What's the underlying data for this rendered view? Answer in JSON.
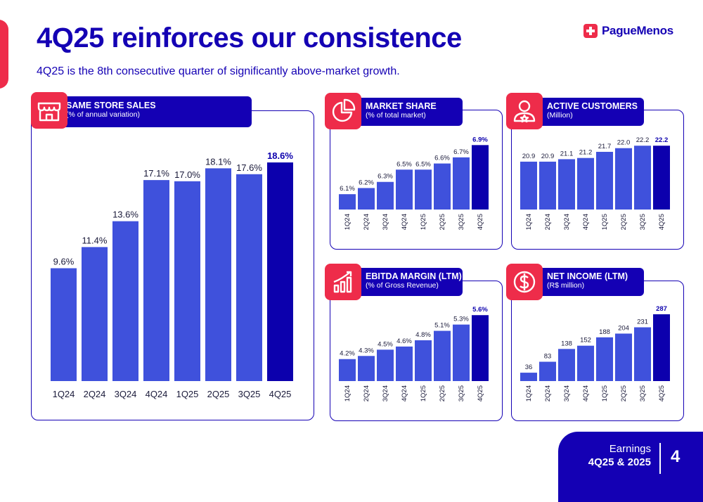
{
  "header": {
    "title": "4Q25 reinforces our consistence",
    "subtitle": "4Q25 is the 8th consecutive quarter of significantly above-market growth.",
    "logo_text": "PagueMenos"
  },
  "footer": {
    "line1": "Earnings",
    "line2": "4Q25 & 2025",
    "page": "4"
  },
  "colors": {
    "bar": "#3f51dc",
    "highlight": "#0c00ad",
    "brand_blue": "#1400b4",
    "brand_red": "#ee2c4a"
  },
  "panels": {
    "sss": {
      "title": "SAME STORE SALES",
      "subtitle": "(% of annual variation)",
      "icon": "store-icon"
    },
    "ms": {
      "title": "MARKET SHARE",
      "subtitle": "(% of total market)",
      "icon": "pie-chart-icon"
    },
    "ac": {
      "title": "ACTIVE CUSTOMERS",
      "subtitle": "(Million)",
      "icon": "customer-icon"
    },
    "eb": {
      "title": "EBITDA MARGIN (LTM)",
      "subtitle": "(% of Gross Revenue)",
      "icon": "growth-chart-icon"
    },
    "ni": {
      "title": "NET INCOME (LTM)",
      "subtitle": "(R$ million)",
      "icon": "dollar-icon"
    }
  },
  "chart_data": [
    {
      "id": "sss",
      "type": "bar",
      "title": "SAME STORE SALES",
      "ylabel": "% of annual variation",
      "categories": [
        "1Q24",
        "2Q24",
        "3Q24",
        "4Q24",
        "1Q25",
        "2Q25",
        "3Q25",
        "4Q25"
      ],
      "values": [
        9.6,
        11.4,
        13.6,
        17.1,
        17.0,
        18.1,
        17.6,
        18.6
      ],
      "labels": [
        "9.6%",
        "11.4%",
        "13.6%",
        "17.1%",
        "17.0%",
        "18.1%",
        "17.6%",
        "18.6%"
      ],
      "ylim": [
        0,
        19.5
      ]
    },
    {
      "id": "ms",
      "type": "bar",
      "title": "MARKET SHARE",
      "ylabel": "% of total market",
      "categories": [
        "1Q24",
        "2Q24",
        "3Q24",
        "4Q24",
        "1Q25",
        "2Q25",
        "3Q25",
        "4Q25"
      ],
      "values": [
        6.1,
        6.2,
        6.3,
        6.5,
        6.5,
        6.6,
        6.7,
        6.9
      ],
      "labels": [
        "6.1%",
        "6.2%",
        "6.3%",
        "6.5%",
        "6.5%",
        "6.6%",
        "6.7%",
        "6.9%"
      ],
      "ylim": [
        5.85,
        6.95
      ]
    },
    {
      "id": "ac",
      "type": "bar",
      "title": "ACTIVE CUSTOMERS",
      "ylabel": "Million",
      "categories": [
        "1Q24",
        "2Q24",
        "3Q24",
        "4Q24",
        "1Q25",
        "2Q25",
        "3Q25",
        "4Q25"
      ],
      "values": [
        20.9,
        20.9,
        21.1,
        21.2,
        21.7,
        22.0,
        22.2,
        22.2
      ],
      "labels": [
        "20.9",
        "20.9",
        "21.1",
        "21.2",
        "21.7",
        "22.0",
        "22.2",
        "22.2"
      ],
      "ylim": [
        17.0,
        22.5
      ]
    },
    {
      "id": "eb",
      "type": "bar",
      "title": "EBITDA MARGIN (LTM)",
      "ylabel": "% of Gross Revenue",
      "categories": [
        "1Q24",
        "2Q24",
        "3Q24",
        "4Q24",
        "1Q25",
        "2Q25",
        "3Q25",
        "4Q25"
      ],
      "values": [
        4.2,
        4.3,
        4.5,
        4.6,
        4.8,
        5.1,
        5.3,
        5.6
      ],
      "labels": [
        "4.2%",
        "4.3%",
        "4.5%",
        "4.6%",
        "4.8%",
        "5.1%",
        "5.3%",
        "5.6%"
      ],
      "ylim": [
        3.5,
        5.65
      ]
    },
    {
      "id": "ni",
      "type": "bar",
      "title": "NET INCOME (LTM)",
      "ylabel": "R$ million",
      "categories": [
        "1Q24",
        "2Q24",
        "3Q24",
        "4Q24",
        "1Q25",
        "2Q25",
        "3Q25",
        "4Q25"
      ],
      "values": [
        36,
        83,
        138,
        152,
        188,
        204,
        231,
        287
      ],
      "labels": [
        "36",
        "83",
        "138",
        "152",
        "188",
        "204",
        "231",
        "287"
      ],
      "ylim": [
        0,
        290
      ]
    }
  ]
}
